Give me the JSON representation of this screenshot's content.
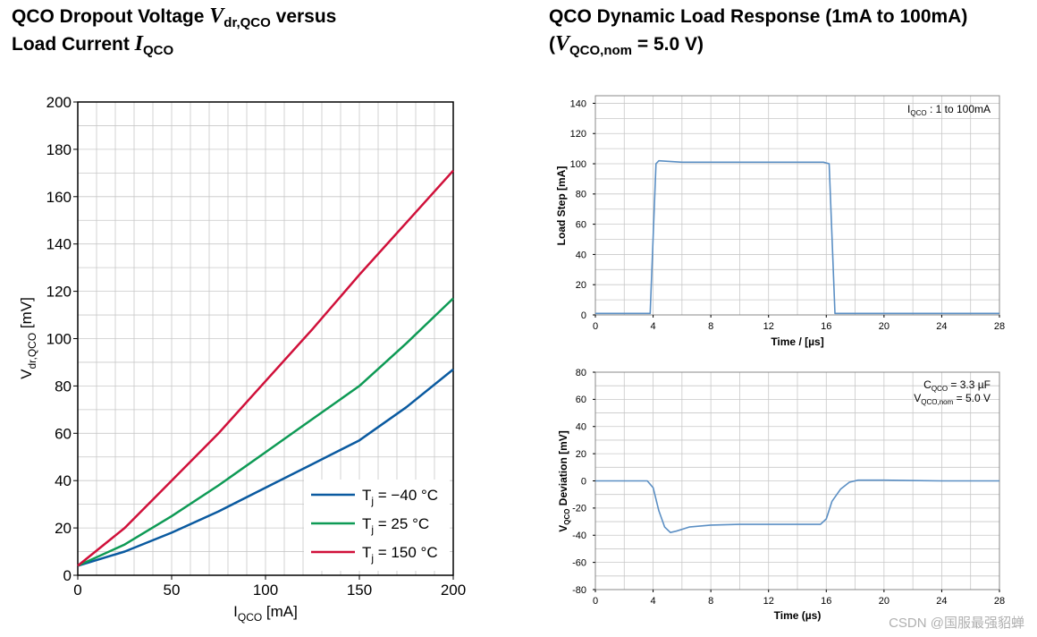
{
  "title_left": {
    "line1_a": "QCO Dropout Voltage ",
    "line1_var": "V",
    "line1_sub": "dr,QCO",
    "line1_b": " versus",
    "line2_a": "Load Current ",
    "line2_var": "I",
    "line2_sub": "QCO"
  },
  "title_right": {
    "line1": "QCO Dynamic Load Response (1mA to 100mA)",
    "line2_a": "(",
    "line2_var": "V",
    "line2_sub": "QCO,nom",
    "line2_b": " = 5.0 V)"
  },
  "colors": {
    "minus40": "#0a5aa0",
    "plus25": "#0e9a55",
    "plus150": "#d0103a",
    "small_line": "#5b8fc4",
    "grid": "#c8c8c8"
  },
  "watermark": "CSDN @国服最强貂蝉",
  "chart_data": [
    {
      "type": "line",
      "title": "QCO Dropout Voltage Vdr,QCO versus Load Current IQCO",
      "xlabel": "I",
      "xlabel_sub": "QCO",
      "xlabel_unit": " [mA]",
      "ylabel": "V",
      "ylabel_sub": "dr,QCO",
      "ylabel_unit": " [mV]",
      "xlim": [
        0,
        200
      ],
      "ylim": [
        0,
        200
      ],
      "xticks": [
        0,
        50,
        100,
        150,
        200
      ],
      "yticks": [
        0,
        20,
        40,
        60,
        80,
        100,
        120,
        140,
        160,
        180,
        200
      ],
      "grid": true,
      "legend_position": "bottom-right",
      "series": [
        {
          "key": "minus40",
          "name_pre": "T",
          "name_sub": "j",
          "name_post": " = −40 °C",
          "x": [
            0,
            25,
            50,
            75,
            100,
            125,
            150,
            175,
            200
          ],
          "y": [
            4,
            10,
            18,
            27,
            37,
            47,
            57,
            71,
            87
          ]
        },
        {
          "key": "plus25",
          "name_pre": "T",
          "name_sub": "j",
          "name_post": " = 25 °C",
          "x": [
            0,
            25,
            50,
            75,
            100,
            125,
            150,
            175,
            200
          ],
          "y": [
            4,
            13,
            25,
            38,
            52,
            66,
            80,
            98,
            117
          ]
        },
        {
          "key": "plus150",
          "name_pre": "T",
          "name_sub": "j",
          "name_post": " = 150 °C",
          "x": [
            0,
            25,
            50,
            75,
            100,
            125,
            150,
            175,
            200
          ],
          "y": [
            4,
            20,
            40,
            60,
            82,
            104,
            127,
            149,
            171
          ]
        }
      ]
    },
    {
      "type": "line",
      "title": "Load Step",
      "xlabel": "Time / [µs]",
      "ylabel": "Load Step  [mA]",
      "xlim": [
        0,
        28
      ],
      "ylim": [
        0,
        145
      ],
      "xticks": [
        0,
        4,
        8,
        12,
        16,
        20,
        24,
        28
      ],
      "yticks": [
        0,
        20,
        40,
        60,
        80,
        100,
        120,
        140
      ],
      "grid": true,
      "annotation": {
        "pre": "I",
        "sub": "QCO",
        "post": " :  1 to 100mA"
      },
      "series": [
        {
          "name": "Load Step",
          "x": [
            0,
            3.8,
            4.2,
            4.4,
            6,
            15.8,
            16.2,
            16.6,
            28
          ],
          "y": [
            1,
            1,
            100,
            102,
            101,
            101,
            100,
            1,
            1
          ]
        }
      ]
    },
    {
      "type": "line",
      "title": "VQCO Deviation",
      "xlabel": "Time (µs)",
      "ylabel": "V",
      "ylabel_sub": "QCO",
      "ylabel_unit": " Deviation  [mV]",
      "xlim": [
        0,
        28
      ],
      "ylim": [
        -80,
        80
      ],
      "xticks": [
        0,
        4,
        8,
        12,
        16,
        20,
        24,
        28
      ],
      "yticks": [
        -80,
        -60,
        -40,
        -20,
        0,
        20,
        40,
        60,
        80
      ],
      "grid": true,
      "annotations": [
        {
          "pre": "C",
          "sub": "QCO",
          "post": " = 3.3 µF"
        },
        {
          "pre": "V",
          "sub": "QCO,nom",
          "post": " = 5.0 V"
        }
      ],
      "series": [
        {
          "name": "Deviation",
          "x": [
            0,
            3.6,
            4,
            4.4,
            4.8,
            5.2,
            5.6,
            6.5,
            8,
            10,
            12,
            14,
            15.6,
            16,
            16.4,
            17,
            17.6,
            18.2,
            20,
            24,
            28
          ],
          "y": [
            0,
            0,
            -5,
            -22,
            -34,
            -38,
            -37,
            -34,
            -32.5,
            -32,
            -32,
            -32,
            -32,
            -28,
            -15,
            -6,
            -1,
            0.5,
            0.5,
            0,
            0
          ]
        }
      ]
    }
  ]
}
